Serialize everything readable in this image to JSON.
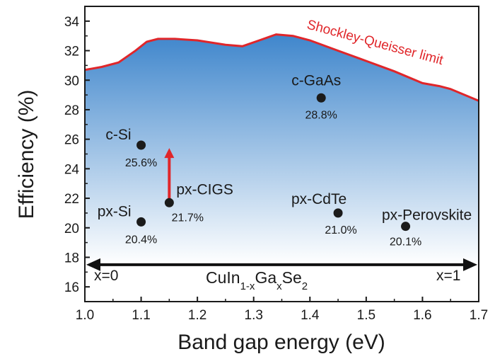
{
  "chart_data": {
    "type": "scatter",
    "xlabel": "Band gap energy (eV)",
    "ylabel": "Efficiency (%)",
    "xlim": [
      1.0,
      1.7
    ],
    "ylim": [
      15,
      35
    ],
    "x_ticks": [
      "1.0",
      "1.1",
      "1.2",
      "1.3",
      "1.4",
      "1.5",
      "1.6",
      "1.7"
    ],
    "y_ticks": [
      "16",
      "18",
      "20",
      "22",
      "24",
      "26",
      "28",
      "30",
      "32",
      "34"
    ],
    "grid": false,
    "points": [
      {
        "label": "c-Si",
        "value_label": "25.6%",
        "x": 1.1,
        "y": 25.6
      },
      {
        "label": "px-Si",
        "value_label": "20.4%",
        "x": 1.1,
        "y": 20.4
      },
      {
        "label": "px-CIGS",
        "value_label": "21.7%",
        "x": 1.15,
        "y": 21.7
      },
      {
        "label": "c-GaAs",
        "value_label": "28.8%",
        "x": 1.42,
        "y": 28.8
      },
      {
        "label": "px-CdTe",
        "value_label": "21.0%",
        "x": 1.45,
        "y": 21.0
      },
      {
        "label": "px-Perovskite",
        "value_label": "20.1%",
        "x": 1.57,
        "y": 20.1
      }
    ],
    "limit_curve": {
      "name": "Shockley-Queisser limit",
      "color": "#e0262a",
      "fill_top": "#3f86cc",
      "fill_bottom": "#ffffff",
      "x": [
        1.0,
        1.03,
        1.06,
        1.09,
        1.11,
        1.13,
        1.16,
        1.2,
        1.25,
        1.28,
        1.31,
        1.34,
        1.37,
        1.4,
        1.45,
        1.5,
        1.55,
        1.6,
        1.63,
        1.65,
        1.7
      ],
      "y": [
        30.7,
        30.9,
        31.2,
        32.0,
        32.6,
        32.8,
        32.8,
        32.7,
        32.4,
        32.3,
        32.7,
        33.1,
        33.0,
        32.7,
        32.0,
        31.3,
        30.6,
        29.8,
        29.6,
        29.4,
        28.6
      ]
    },
    "arrow": {
      "x": 1.15,
      "y_from": 21.9,
      "y_to": 25.4,
      "color": "#e0262a"
    },
    "range": {
      "y": 17.5,
      "left_label": "x=0",
      "right_label": "x=1",
      "formula": {
        "base1": "CuIn",
        "sub1": "1-x",
        "base2": "Ga",
        "sub2": "x",
        "base3": "Se",
        "sub3": "2"
      }
    }
  }
}
